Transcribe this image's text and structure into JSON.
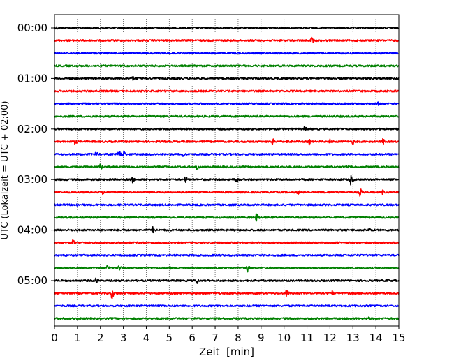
{
  "chart_data": {
    "type": "line",
    "subtype": "seismogram-helicorder",
    "xlabel": "Zeit  [min]",
    "ylabel": "UTC (Lokalzeit = UTC + 02:00)",
    "xlim": [
      0,
      15
    ],
    "x_ticks": [
      "0",
      "1",
      "2",
      "3",
      "4",
      "5",
      "6",
      "7",
      "8",
      "9",
      "10",
      "11",
      "12",
      "13",
      "14",
      "15"
    ],
    "y_ticks": [
      "00:00",
      "01:00",
      "02:00",
      "03:00",
      "04:00",
      "05:00"
    ],
    "trace_minutes": 15,
    "grid": "vertical dotted at every minute",
    "trace_colors": [
      "#000000",
      "#ff0000",
      "#0000ff",
      "#008000"
    ],
    "rows": [
      {
        "start": "00:00",
        "events": [
          {
            "t": 0.1,
            "amp": 0.35
          }
        ]
      },
      {
        "start": "00:15",
        "events": [
          {
            "t": 11.2,
            "amp": 0.8
          }
        ]
      },
      {
        "start": "00:30",
        "events": [
          {
            "t": 9.0,
            "amp": 0.35
          }
        ]
      },
      {
        "start": "00:45",
        "events": [
          {
            "t": 1.8,
            "amp": 0.35
          }
        ]
      },
      {
        "start": "01:00",
        "events": [
          {
            "t": 3.4,
            "amp": 0.55
          }
        ]
      },
      {
        "start": "01:15",
        "events": []
      },
      {
        "start": "01:30",
        "events": [
          {
            "t": 14.1,
            "amp": 0.45
          }
        ]
      },
      {
        "start": "01:45",
        "events": []
      },
      {
        "start": "02:00",
        "events": [
          {
            "t": 10.9,
            "amp": 0.6
          }
        ]
      },
      {
        "start": "02:15",
        "events": [
          {
            "t": 0.9,
            "amp": 0.7
          },
          {
            "t": 9.5,
            "amp": 0.7
          },
          {
            "t": 10.1,
            "amp": 0.6
          },
          {
            "t": 11.1,
            "amp": 0.6
          },
          {
            "t": 12.0,
            "amp": 0.55
          },
          {
            "t": 13.0,
            "amp": 0.6
          },
          {
            "t": 14.3,
            "amp": 0.7
          }
        ]
      },
      {
        "start": "02:30",
        "events": [
          {
            "t": 1.8,
            "amp": 0.6
          },
          {
            "t": 2.8,
            "amp": 1.0
          },
          {
            "t": 3.0,
            "amp": 0.9
          },
          {
            "t": 4.2,
            "amp": 0.5
          },
          {
            "t": 5.6,
            "amp": 0.6
          }
        ]
      },
      {
        "start": "02:45",
        "events": [
          {
            "t": 2.0,
            "amp": 0.8
          },
          {
            "t": 6.2,
            "amp": 0.7
          }
        ]
      },
      {
        "start": "03:00",
        "events": [
          {
            "t": 3.4,
            "amp": 0.6
          },
          {
            "t": 5.7,
            "amp": 0.7
          },
          {
            "t": 7.9,
            "amp": 0.8
          },
          {
            "t": 12.9,
            "amp": 1.0
          }
        ]
      },
      {
        "start": "03:15",
        "events": [
          {
            "t": 1.4,
            "amp": 0.5
          },
          {
            "t": 2.1,
            "amp": 0.55
          },
          {
            "t": 10.6,
            "amp": 0.6
          },
          {
            "t": 13.3,
            "amp": 1.0
          },
          {
            "t": 14.3,
            "amp": 0.55
          }
        ]
      },
      {
        "start": "03:30",
        "events": [
          {
            "t": 1.0,
            "amp": 0.5
          }
        ]
      },
      {
        "start": "03:45",
        "events": [
          {
            "t": 8.8,
            "amp": 1.0
          }
        ]
      },
      {
        "start": "04:00",
        "events": [
          {
            "t": 4.3,
            "amp": 0.9
          },
          {
            "t": 13.7,
            "amp": 0.55
          }
        ]
      },
      {
        "start": "04:15",
        "events": [
          {
            "t": 0.8,
            "amp": 0.8
          }
        ]
      },
      {
        "start": "04:30",
        "events": []
      },
      {
        "start": "04:45",
        "events": [
          {
            "t": 2.3,
            "amp": 0.7
          },
          {
            "t": 2.8,
            "amp": 0.8
          },
          {
            "t": 5.0,
            "amp": 0.5
          },
          {
            "t": 8.4,
            "amp": 0.9
          }
        ]
      },
      {
        "start": "05:00",
        "events": [
          {
            "t": 1.8,
            "amp": 0.8
          },
          {
            "t": 6.2,
            "amp": 0.7
          },
          {
            "t": 14.5,
            "amp": 0.5
          }
        ]
      },
      {
        "start": "05:15",
        "events": [
          {
            "t": 2.5,
            "amp": 1.2
          },
          {
            "t": 10.1,
            "amp": 0.9
          },
          {
            "t": 12.1,
            "amp": 0.6
          }
        ]
      },
      {
        "start": "05:30",
        "events": []
      },
      {
        "start": "05:45",
        "events": [
          {
            "t": 13.7,
            "amp": 0.4
          }
        ]
      }
    ]
  }
}
